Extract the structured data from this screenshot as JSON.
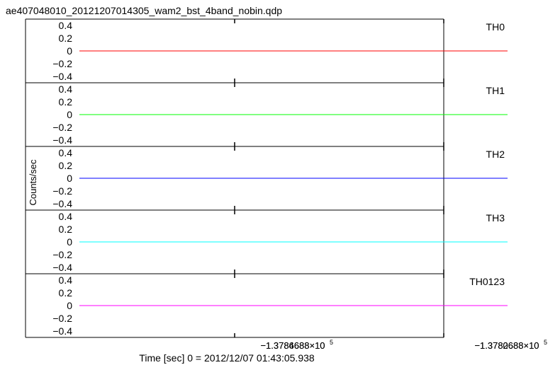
{
  "title": "ae407048010_20121207014305_wam2_bst_4band_nobin.qdp",
  "ylabel": "Counts/sec",
  "xlabel": "Time [sec] 0 = 2012/12/07 01:43:05.938",
  "x_tick_labels": [
    {
      "mantissa": "−1.3786688×10",
      "exp": "5",
      "overlap": "−1.3784688×10"
    },
    {
      "mantissa": "−1.3782688×10",
      "exp": "5",
      "overlap": "−1.3780688×10"
    }
  ],
  "chart_data": {
    "type": "line",
    "title": "ae407048010_20121207014305_wam2_bst_4band_nobin.qdp",
    "xlabel": "Time [sec] 0 = 2012/12/07 01:43:05.938",
    "ylabel": "Counts/sec",
    "ylim": [
      -0.5,
      0.5
    ],
    "yticks": [
      "0.4",
      "0.2",
      "0",
      "−0.2",
      "−0.4"
    ],
    "grid": false,
    "panels": [
      {
        "name": "TH0",
        "color": "#ff0000",
        "series": [
          {
            "name": "TH0",
            "x": [
              -137866,
              -137826
            ],
            "y": [
              0,
              0
            ]
          }
        ]
      },
      {
        "name": "TH1",
        "color": "#00ff00",
        "series": [
          {
            "name": "TH1",
            "x": [
              -137866,
              -137826
            ],
            "y": [
              0,
              0
            ]
          }
        ]
      },
      {
        "name": "TH2",
        "color": "#0000ff",
        "series": [
          {
            "name": "TH2",
            "x": [
              -137866,
              -137826
            ],
            "y": [
              0,
              0
            ]
          }
        ]
      },
      {
        "name": "TH3",
        "color": "#00ffff",
        "series": [
          {
            "name": "TH3",
            "x": [
              -137866,
              -137826
            ],
            "y": [
              0,
              0
            ]
          }
        ]
      },
      {
        "name": "TH0123",
        "color": "#ff00ff",
        "series": [
          {
            "name": "TH0123",
            "x": [
              -137866,
              -137826
            ],
            "y": [
              0,
              0
            ]
          }
        ]
      }
    ]
  }
}
